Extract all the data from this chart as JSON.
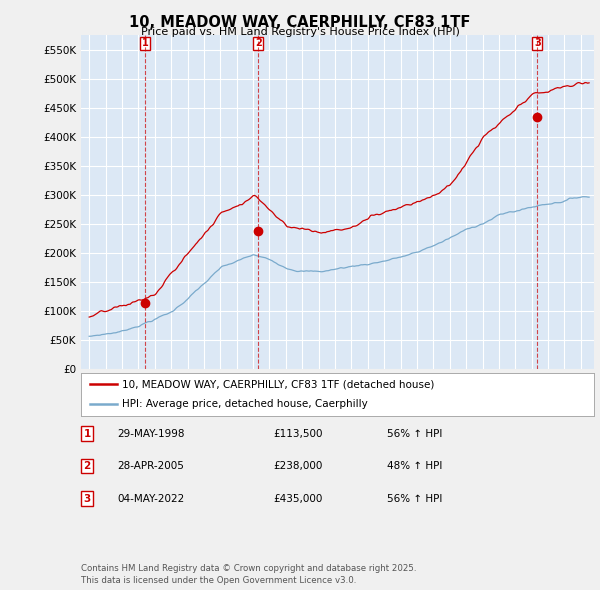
{
  "title": "10, MEADOW WAY, CAERPHILLY, CF83 1TF",
  "subtitle": "Price paid vs. HM Land Registry's House Price Index (HPI)",
  "bg_color": "#f0f0f0",
  "plot_bg_color": "#ffffff",
  "plot_band_color": "#dce8f5",
  "ylim": [
    0,
    575000
  ],
  "yticks": [
    0,
    50000,
    100000,
    150000,
    200000,
    250000,
    300000,
    350000,
    400000,
    450000,
    500000,
    550000
  ],
  "ytick_labels": [
    "£0",
    "£50K",
    "£100K",
    "£150K",
    "£200K",
    "£250K",
    "£300K",
    "£350K",
    "£400K",
    "£450K",
    "£500K",
    "£550K"
  ],
  "red_line_color": "#cc0000",
  "blue_line_color": "#7aaacc",
  "grid_color": "#cccccc",
  "transaction_years": [
    1998.41,
    2005.32,
    2022.34
  ],
  "transaction_prices": [
    113500,
    238000,
    435000
  ],
  "transaction_labels": [
    "1",
    "2",
    "3"
  ],
  "footnote": "Contains HM Land Registry data © Crown copyright and database right 2025.\nThis data is licensed under the Open Government Licence v3.0.",
  "legend_red_label": "10, MEADOW WAY, CAERPHILLY, CF83 1TF (detached house)",
  "legend_blue_label": "HPI: Average price, detached house, Caerphilly",
  "table_rows": [
    [
      "1",
      "29-MAY-1998",
      "£113,500",
      "56% ↑ HPI"
    ],
    [
      "2",
      "28-APR-2005",
      "£238,000",
      "48% ↑ HPI"
    ],
    [
      "3",
      "04-MAY-2022",
      "£435,000",
      "56% ↑ HPI"
    ]
  ]
}
